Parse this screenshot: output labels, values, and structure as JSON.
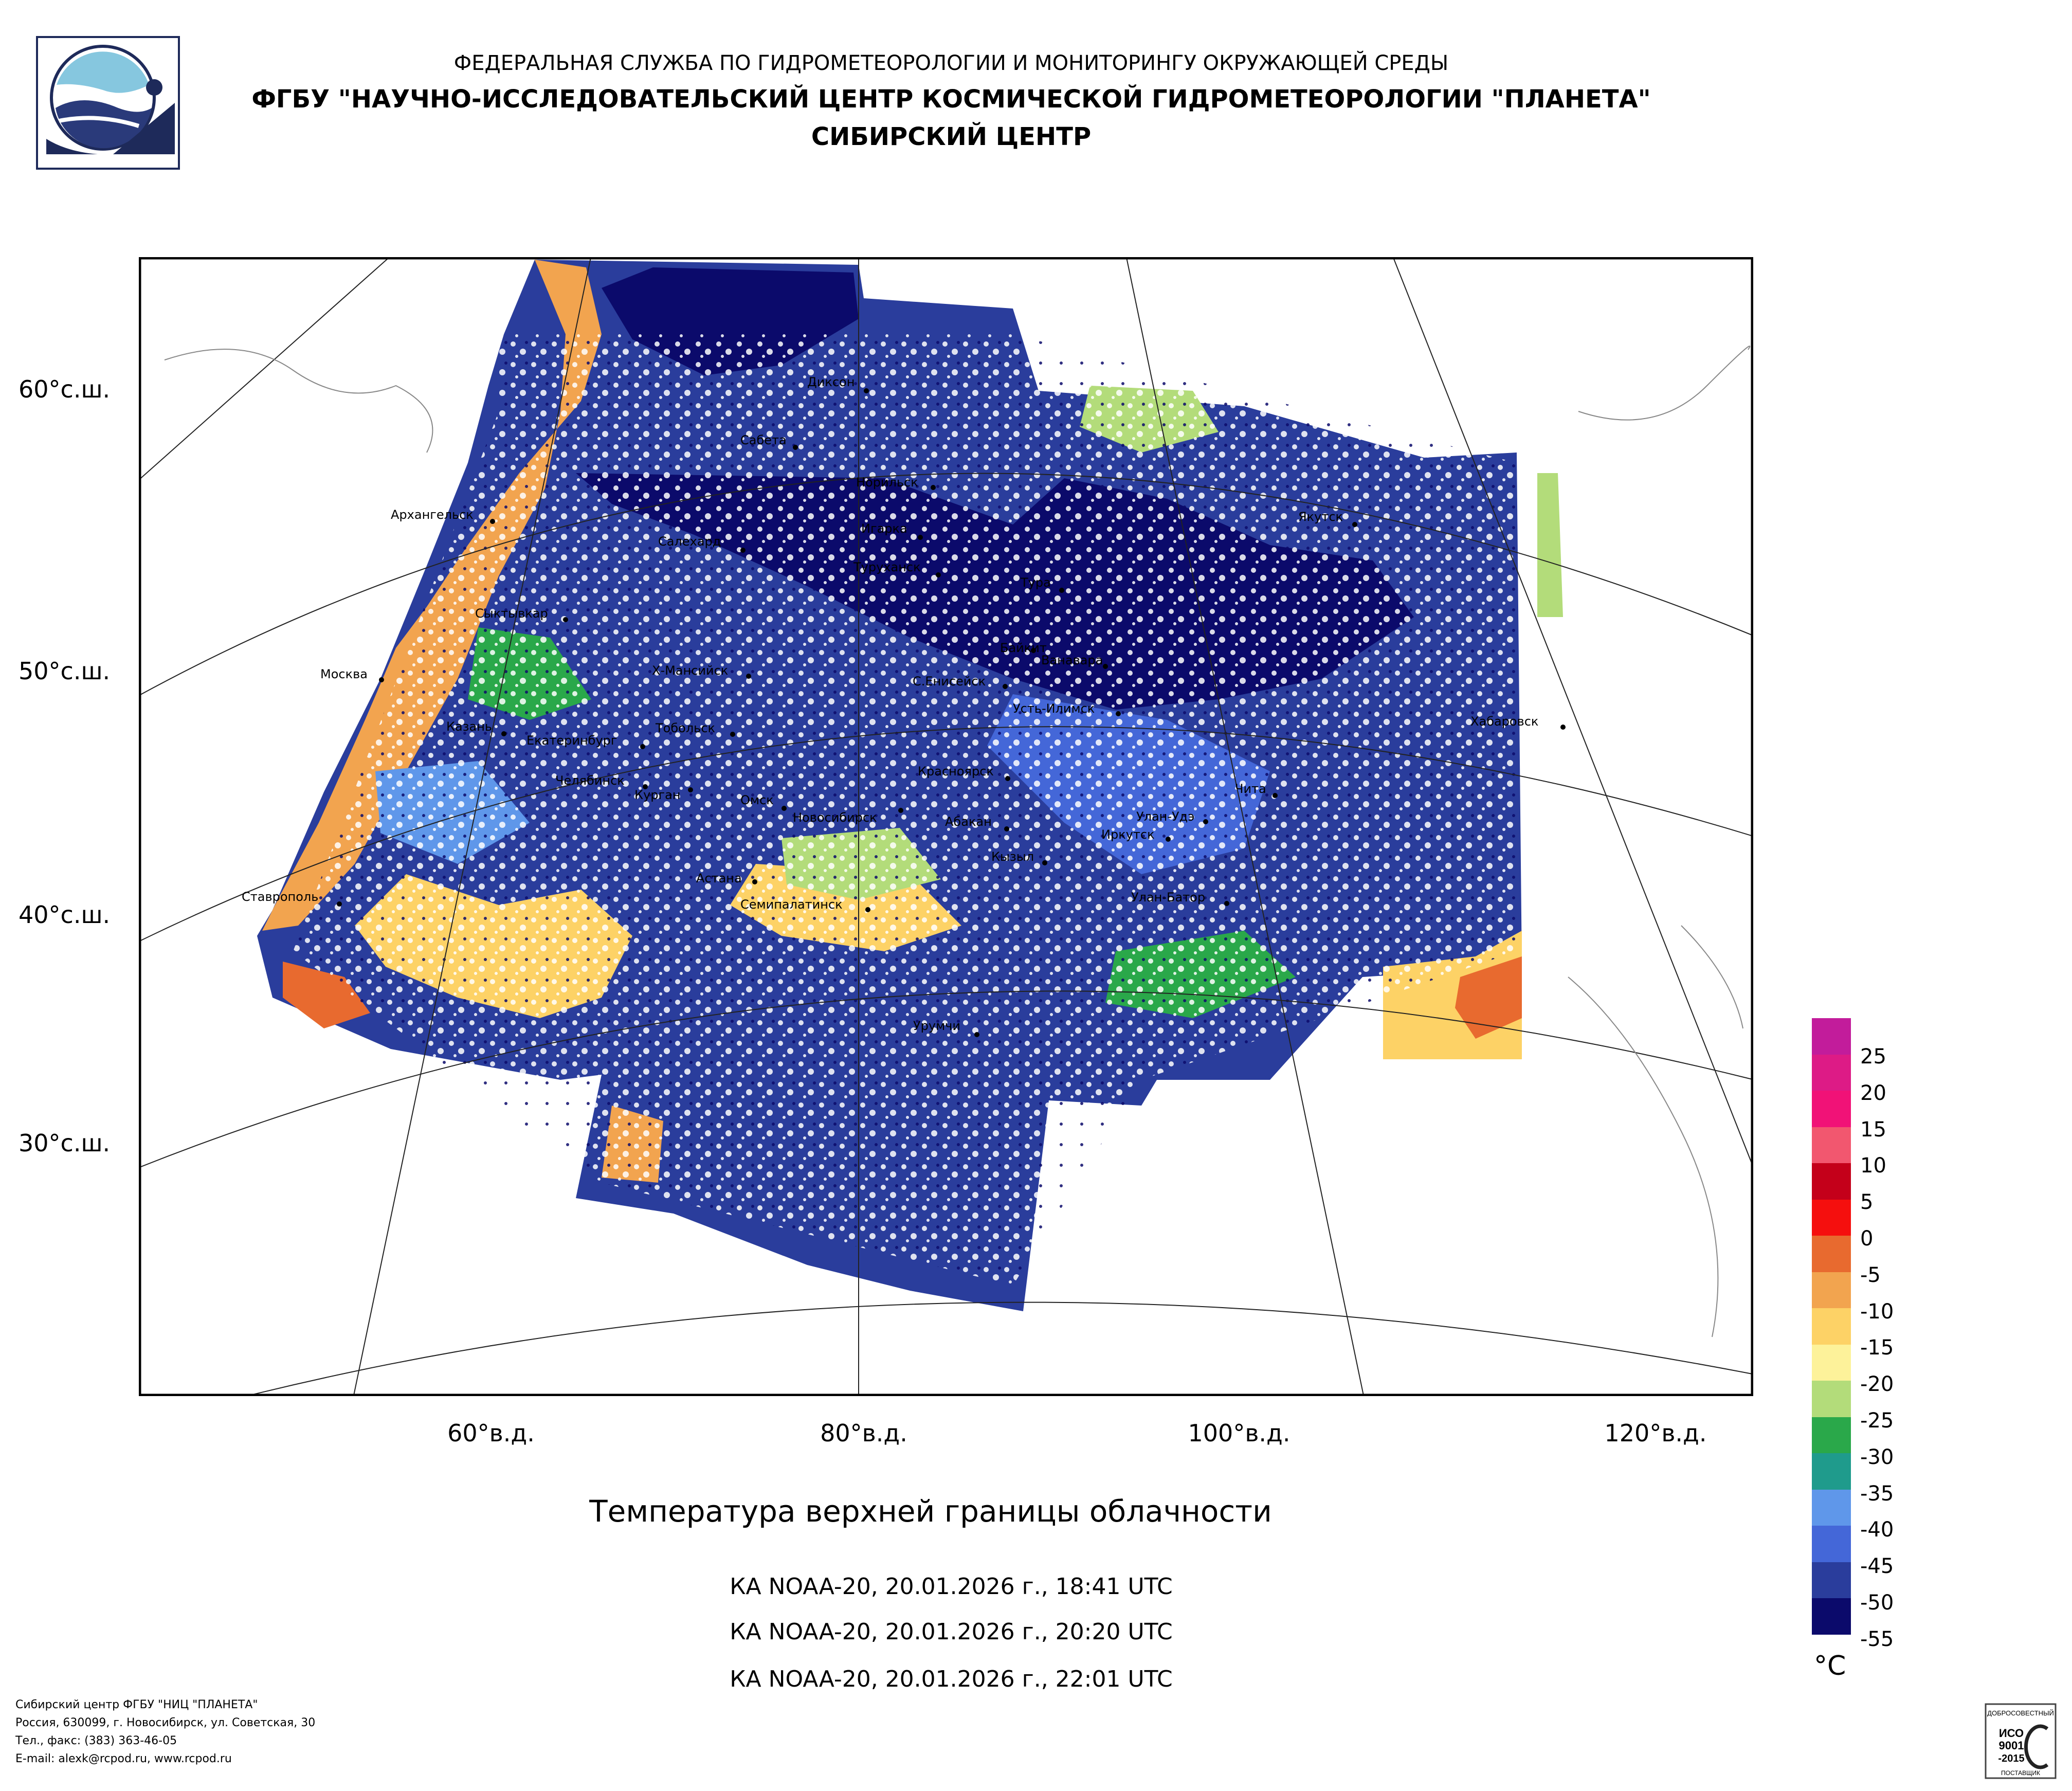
{
  "header": {
    "line1": "ФЕДЕРАЛЬНАЯ СЛУЖБА ПО ГИДРОМЕТЕОРОЛОГИИ И МОНИТОРИНГУ ОКРУЖАЮЩЕЙ СРЕДЫ",
    "line2": "ФГБУ \"НАУЧНО-ИССЛЕДОВАТЕЛЬСКИЙ ЦЕНТР КОСМИЧЕСКОЙ ГИДРОМЕТЕОРОЛОГИИ \"ПЛАНЕТА\"",
    "line3": "СИБИРСКИЙ ЦЕНТР"
  },
  "latitude_labels": [
    "60°с.ш.",
    "50°с.ш.",
    "40°с.ш.",
    "30°с.ш."
  ],
  "longitude_labels": [
    "60°в.д.",
    "80°в.д.",
    "100°в.д.",
    "120°в.д."
  ],
  "cities": [
    "Диксон",
    "Сабета",
    "Норильск",
    "Архангельск",
    "Игарка",
    "Салехард",
    "Туруханск",
    "Тура",
    "Якутск",
    "Сыктывкар",
    "Байкит",
    "Ванавара",
    "Москва",
    "Х-Мансийск",
    "С.Енисейск",
    "Усть-Илимск",
    "Казань",
    "Екатеринбург",
    "Тобольск",
    "Хабаровск",
    "Челябинск",
    "Курган",
    "Омск",
    "Красноярск",
    "Новосибирск",
    "Абакан",
    "Улан-Удэ",
    "Чита",
    "Иркутск",
    "Кызыл",
    "Астана",
    "Ставрополь",
    "Семипалатинск",
    "Улан-Батор",
    "Урумчи"
  ],
  "product_title": "Температура верхней границы облачности",
  "passes": [
    "КА NOAA-20, 20.01.2026 г., 18:41 UTC",
    "КА NOAA-20, 20.01.2026 г., 20:20 UTC",
    "КА NOAA-20, 20.01.2026 г., 22:01 UTC"
  ],
  "legend": {
    "unit": "°C",
    "labels": [
      "25",
      "20",
      "15",
      "10",
      "5",
      "0",
      "-5",
      "-10",
      "-15",
      "-20",
      "-25",
      "-30",
      "-35",
      "-40",
      "-45",
      "-50",
      "-55"
    ],
    "colors": [
      "#c21c9b",
      "#dd1b86",
      "#f11277",
      "#f2576f",
      "#c4001a",
      "#f50f0e",
      "#e86a2f",
      "#f2a44f",
      "#fdd266",
      "#fdf29a",
      "#b3dc7a",
      "#2aa84a",
      "#1f9b8c",
      "#5f97ea",
      "#4467d8",
      "#2a3d9c",
      "#0b0a6b"
    ]
  },
  "footer": {
    "line1": "Сибирский центр ФГБУ \"НИЦ \"ПЛАНЕТА\"",
    "line2": "Россия, 630099, г. Новосибирск, ул. Советская, 30",
    "line3": "Тел., факс: (383) 363-46-05",
    "line4": "E-mail: alexk@rcpod.ru, www.rcpod.ru"
  },
  "iso_badge": {
    "top": "ДОБРОСОВЕСТНЫЙ",
    "l1": "ИСО",
    "l2": "9001",
    "l3": "-2015",
    "bottom": "ПОСТАВЩИК"
  }
}
